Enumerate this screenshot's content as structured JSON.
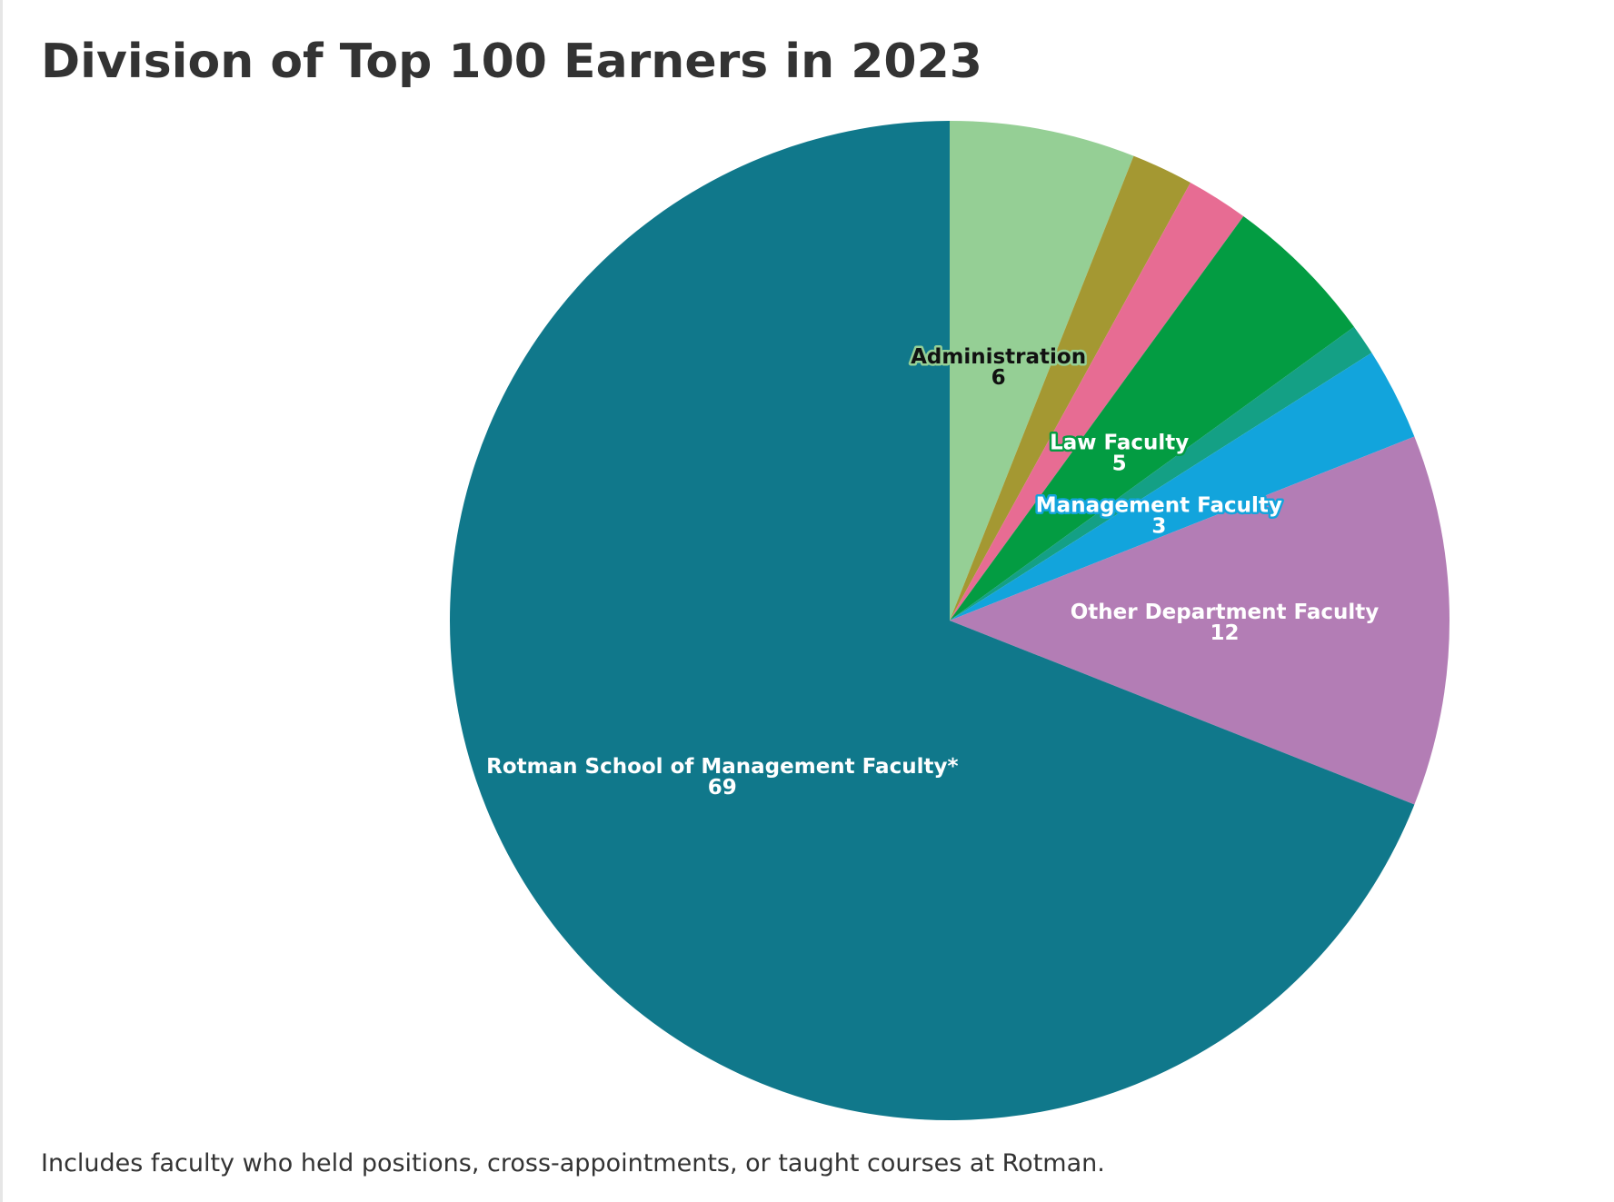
{
  "chart_data": {
    "type": "pie",
    "title": "Division of Top 100 Earners in 2023",
    "footnote": "Includes faculty who held positions, cross-appointments, or taught courses at Rotman.",
    "start_angle_deg": 0,
    "direction": "clockwise",
    "slices": [
      {
        "name": "Administration",
        "value": 6,
        "color": "#95cf95",
        "label": "Administration",
        "value_label": "6",
        "label_color": "#111111",
        "halo_color": "#95cf95"
      },
      {
        "name": "",
        "value": 2,
        "color": "#a49832",
        "label": "",
        "value_label": ""
      },
      {
        "name": "",
        "value": 2,
        "color": "#e76c93",
        "label": "",
        "value_label": ""
      },
      {
        "name": "Law Faculty",
        "value": 5,
        "color": "#039c42",
        "label": "Law Faculty",
        "value_label": "5",
        "label_color": "#ffffff",
        "halo_color": "#039c42"
      },
      {
        "name": "",
        "value": 1,
        "color": "#14a085",
        "label": "",
        "value_label": ""
      },
      {
        "name": "Management Faculty",
        "value": 3,
        "color": "#12a4dc",
        "label": "Management Faculty",
        "value_label": "3",
        "label_color": "#ffffff",
        "halo_color": "#12a4dc"
      },
      {
        "name": "Other Department Faculty",
        "value": 12,
        "color": "#b37db5",
        "label": "Other Department Faculty",
        "value_label": "12",
        "label_color": "#ffffff",
        "halo_color": "#b37db5"
      },
      {
        "name": "Rotman School of Management Faculty*",
        "value": 69,
        "color": "#10788b",
        "label": "Rotman School of Management Faculty*",
        "value_label": "69",
        "label_color": "#ffffff",
        "halo_color": "#10788b"
      }
    ]
  }
}
